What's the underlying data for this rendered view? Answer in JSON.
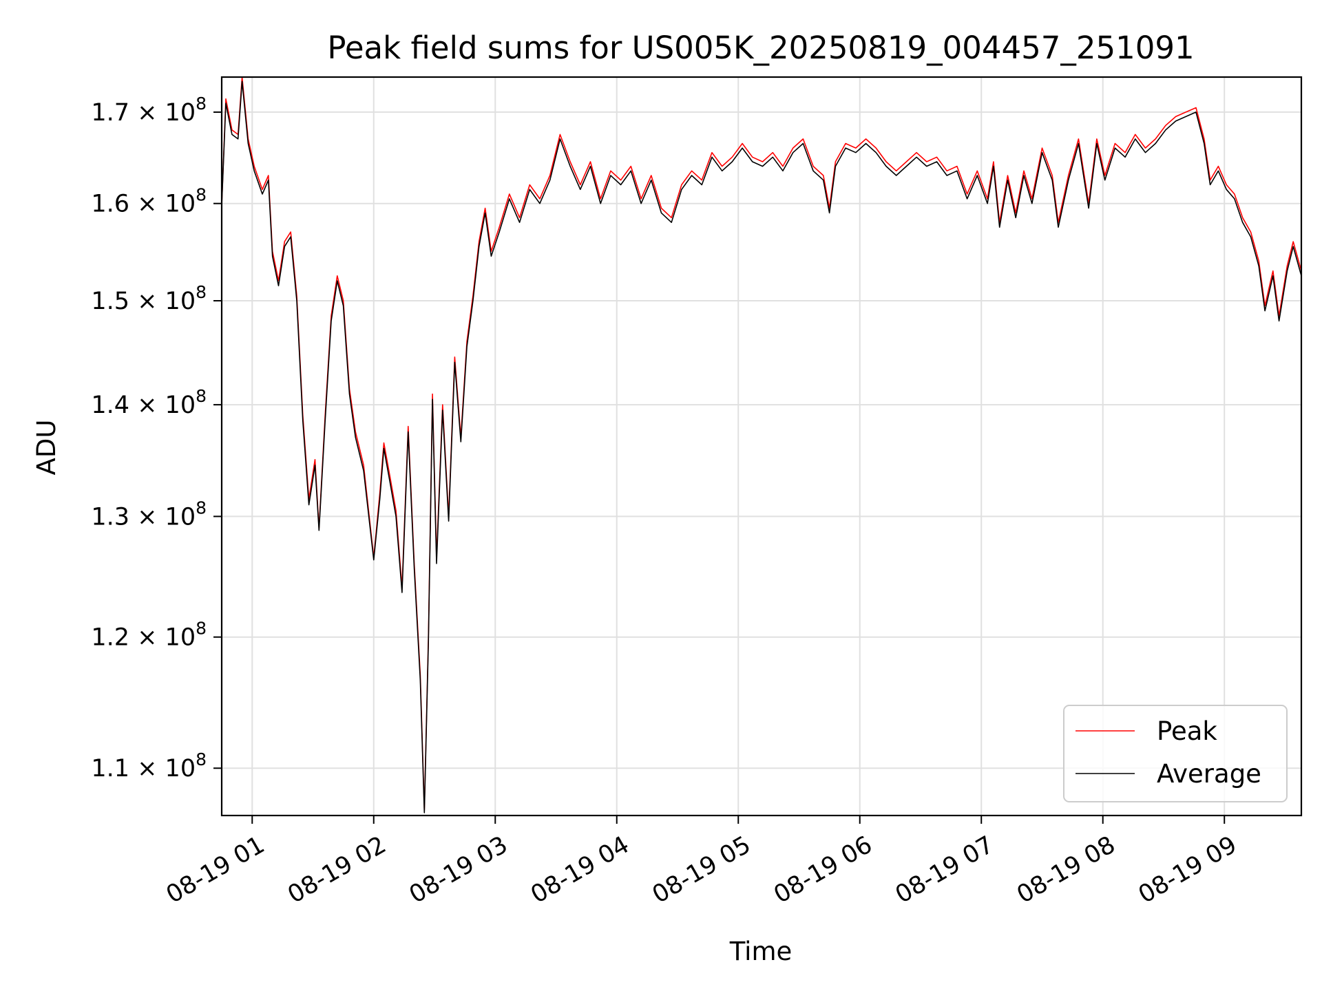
{
  "chart_data": {
    "type": "line",
    "title": "Peak field sums for US005K_20250819_004457_251091",
    "xlabel": "Time",
    "ylabel": "ADU",
    "x_ticks": [
      "08-19 01",
      "08-19 02",
      "08-19 03",
      "08-19 04",
      "08-19 05",
      "08-19 06",
      "08-19 07",
      "08-19 08",
      "08-19 09"
    ],
    "xlim": [
      "2025-08-19 00:44:57",
      "2025-08-19 09:38:00"
    ],
    "y_scale": "log",
    "y_ticks": [
      {
        "base": "1.1",
        "value": 110000000
      },
      {
        "base": "1.2",
        "value": 120000000
      },
      {
        "base": "1.3",
        "value": 130000000
      },
      {
        "base": "1.4",
        "value": 140000000
      },
      {
        "base": "1.5",
        "value": 150000000
      },
      {
        "base": "1.6",
        "value": 160000000
      },
      {
        "base": "1.7",
        "value": 170000000
      }
    ],
    "y_tick_suffix": "× 10",
    "y_tick_exp": "8",
    "ylim": [
      106600000,
      174000000
    ],
    "grid": true,
    "legend_position": "lower-right",
    "series": [
      {
        "name": "Peak",
        "color": "#ff0000",
        "points": [
          [
            "00:45",
            160000000
          ],
          [
            "00:47",
            171500000
          ],
          [
            "00:50",
            168000000
          ],
          [
            "00:53",
            167500000
          ],
          [
            "00:55",
            174000000
          ],
          [
            "00:58",
            167000000
          ],
          [
            "01:01",
            164000000
          ],
          [
            "01:05",
            161500000
          ],
          [
            "01:08",
            163000000
          ],
          [
            "01:10",
            155000000
          ],
          [
            "01:13",
            152000000
          ],
          [
            "01:16",
            156000000
          ],
          [
            "01:19",
            157000000
          ],
          [
            "01:22",
            150500000
          ],
          [
            "01:25",
            139000000
          ],
          [
            "01:28",
            131500000
          ],
          [
            "01:31",
            135000000
          ],
          [
            "01:33",
            129000000
          ],
          [
            "01:36",
            139000000
          ],
          [
            "01:39",
            148500000
          ],
          [
            "01:42",
            152500000
          ],
          [
            "01:45",
            150000000
          ],
          [
            "01:48",
            141500000
          ],
          [
            "01:51",
            137500000
          ],
          [
            "01:55",
            134500000
          ],
          [
            "02:00",
            126500000
          ],
          [
            "02:03",
            132000000
          ],
          [
            "02:05",
            136500000
          ],
          [
            "02:08",
            133500000
          ],
          [
            "02:11",
            130500000
          ],
          [
            "02:14",
            124000000
          ],
          [
            "02:17",
            138000000
          ],
          [
            "02:20",
            126000000
          ],
          [
            "02:23",
            117000000
          ],
          [
            "02:25",
            107000000
          ],
          [
            "02:27",
            120000000
          ],
          [
            "02:29",
            141000000
          ],
          [
            "02:31",
            126500000
          ],
          [
            "02:34",
            140000000
          ],
          [
            "02:37",
            130000000
          ],
          [
            "02:40",
            144500000
          ],
          [
            "02:43",
            137000000
          ],
          [
            "02:46",
            146000000
          ],
          [
            "02:49",
            150500000
          ],
          [
            "02:52",
            156000000
          ],
          [
            "02:55",
            159500000
          ],
          [
            "02:58",
            155000000
          ],
          [
            "03:02",
            157500000
          ],
          [
            "03:07",
            161000000
          ],
          [
            "03:12",
            158500000
          ],
          [
            "03:17",
            162000000
          ],
          [
            "03:22",
            160500000
          ],
          [
            "03:27",
            163000000
          ],
          [
            "03:32",
            167500000
          ],
          [
            "03:37",
            164500000
          ],
          [
            "03:42",
            162000000
          ],
          [
            "03:47",
            164500000
          ],
          [
            "03:52",
            160500000
          ],
          [
            "03:57",
            163500000
          ],
          [
            "04:02",
            162500000
          ],
          [
            "04:07",
            164000000
          ],
          [
            "04:12",
            160500000
          ],
          [
            "04:17",
            163000000
          ],
          [
            "04:22",
            159500000
          ],
          [
            "04:27",
            158500000
          ],
          [
            "04:32",
            162000000
          ],
          [
            "04:37",
            163500000
          ],
          [
            "04:42",
            162500000
          ],
          [
            "04:47",
            165500000
          ],
          [
            "04:52",
            164000000
          ],
          [
            "04:57",
            165000000
          ],
          [
            "05:02",
            166500000
          ],
          [
            "05:07",
            165000000
          ],
          [
            "05:12",
            164500000
          ],
          [
            "05:17",
            165500000
          ],
          [
            "05:22",
            164000000
          ],
          [
            "05:27",
            166000000
          ],
          [
            "05:32",
            167000000
          ],
          [
            "05:37",
            164000000
          ],
          [
            "05:42",
            163000000
          ],
          [
            "05:45",
            159500000
          ],
          [
            "05:48",
            164500000
          ],
          [
            "05:53",
            166500000
          ],
          [
            "05:58",
            166000000
          ],
          [
            "06:03",
            167000000
          ],
          [
            "06:08",
            166000000
          ],
          [
            "06:13",
            164500000
          ],
          [
            "06:18",
            163500000
          ],
          [
            "06:23",
            164500000
          ],
          [
            "06:28",
            165500000
          ],
          [
            "06:33",
            164500000
          ],
          [
            "06:38",
            165000000
          ],
          [
            "06:43",
            163500000
          ],
          [
            "06:48",
            164000000
          ],
          [
            "06:53",
            161000000
          ],
          [
            "06:58",
            163500000
          ],
          [
            "07:03",
            160500000
          ],
          [
            "07:06",
            164500000
          ],
          [
            "07:09",
            158000000
          ],
          [
            "07:13",
            163000000
          ],
          [
            "07:17",
            159000000
          ],
          [
            "07:21",
            163500000
          ],
          [
            "07:25",
            160500000
          ],
          [
            "07:30",
            166000000
          ],
          [
            "07:35",
            163000000
          ],
          [
            "07:38",
            158000000
          ],
          [
            "07:43",
            163000000
          ],
          [
            "07:48",
            167000000
          ],
          [
            "07:53",
            160000000
          ],
          [
            "07:57",
            167000000
          ],
          [
            "08:01",
            163000000
          ],
          [
            "08:06",
            166500000
          ],
          [
            "08:11",
            165500000
          ],
          [
            "08:16",
            167500000
          ],
          [
            "08:21",
            166000000
          ],
          [
            "08:26",
            167000000
          ],
          [
            "08:31",
            168500000
          ],
          [
            "08:36",
            169500000
          ],
          [
            "08:41",
            170000000
          ],
          [
            "08:46",
            170500000
          ],
          [
            "08:50",
            167000000
          ],
          [
            "08:53",
            162500000
          ],
          [
            "08:57",
            164000000
          ],
          [
            "09:01",
            162000000
          ],
          [
            "09:05",
            161000000
          ],
          [
            "09:09",
            158500000
          ],
          [
            "09:13",
            157000000
          ],
          [
            "09:17",
            154000000
          ],
          [
            "09:20",
            149500000
          ],
          [
            "09:24",
            153000000
          ],
          [
            "09:27",
            148500000
          ],
          [
            "09:31",
            153500000
          ],
          [
            "09:34",
            156000000
          ],
          [
            "09:38",
            153000000
          ]
        ]
      },
      {
        "name": "Average",
        "color": "#000000",
        "points": [
          [
            "00:45",
            160000000
          ],
          [
            "00:47",
            171000000
          ],
          [
            "00:50",
            167500000
          ],
          [
            "00:53",
            167000000
          ],
          [
            "00:55",
            173500000
          ],
          [
            "00:58",
            166500000
          ],
          [
            "01:01",
            163500000
          ],
          [
            "01:05",
            161000000
          ],
          [
            "01:08",
            162500000
          ],
          [
            "01:10",
            154500000
          ],
          [
            "01:13",
            151500000
          ],
          [
            "01:16",
            155500000
          ],
          [
            "01:19",
            156500000
          ],
          [
            "01:22",
            150000000
          ],
          [
            "01:25",
            138500000
          ],
          [
            "01:28",
            131000000
          ],
          [
            "01:31",
            134500000
          ],
          [
            "01:33",
            128800000
          ],
          [
            "01:36",
            138500000
          ],
          [
            "01:39",
            148000000
          ],
          [
            "01:42",
            152000000
          ],
          [
            "01:45",
            149500000
          ],
          [
            "01:48",
            141000000
          ],
          [
            "01:51",
            137000000
          ],
          [
            "01:55",
            134000000
          ],
          [
            "02:00",
            126300000
          ],
          [
            "02:03",
            131500000
          ],
          [
            "02:05",
            136000000
          ],
          [
            "02:08",
            133000000
          ],
          [
            "02:11",
            130000000
          ],
          [
            "02:14",
            123600000
          ],
          [
            "02:17",
            137500000
          ],
          [
            "02:20",
            125600000
          ],
          [
            "02:23",
            116600000
          ],
          [
            "02:25",
            106800000
          ],
          [
            "02:27",
            119600000
          ],
          [
            "02:29",
            140500000
          ],
          [
            "02:31",
            126000000
          ],
          [
            "02:34",
            139500000
          ],
          [
            "02:37",
            129600000
          ],
          [
            "02:40",
            144000000
          ],
          [
            "02:43",
            136600000
          ],
          [
            "02:46",
            145500000
          ],
          [
            "02:49",
            150000000
          ],
          [
            "02:52",
            155500000
          ],
          [
            "02:55",
            159000000
          ],
          [
            "02:58",
            154500000
          ],
          [
            "03:02",
            157000000
          ],
          [
            "03:07",
            160500000
          ],
          [
            "03:12",
            158000000
          ],
          [
            "03:17",
            161500000
          ],
          [
            "03:22",
            160000000
          ],
          [
            "03:27",
            162500000
          ],
          [
            "03:32",
            167000000
          ],
          [
            "03:37",
            164000000
          ],
          [
            "03:42",
            161500000
          ],
          [
            "03:47",
            164000000
          ],
          [
            "03:52",
            160000000
          ],
          [
            "03:57",
            163000000
          ],
          [
            "04:02",
            162000000
          ],
          [
            "04:07",
            163500000
          ],
          [
            "04:12",
            160000000
          ],
          [
            "04:17",
            162500000
          ],
          [
            "04:22",
            159000000
          ],
          [
            "04:27",
            158000000
          ],
          [
            "04:32",
            161500000
          ],
          [
            "04:37",
            163000000
          ],
          [
            "04:42",
            162000000
          ],
          [
            "04:47",
            165000000
          ],
          [
            "04:52",
            163500000
          ],
          [
            "04:57",
            164500000
          ],
          [
            "05:02",
            166000000
          ],
          [
            "05:07",
            164500000
          ],
          [
            "05:12",
            164000000
          ],
          [
            "05:17",
            165000000
          ],
          [
            "05:22",
            163500000
          ],
          [
            "05:27",
            165500000
          ],
          [
            "05:32",
            166500000
          ],
          [
            "05:37",
            163500000
          ],
          [
            "05:42",
            162500000
          ],
          [
            "05:45",
            159000000
          ],
          [
            "05:48",
            164000000
          ],
          [
            "05:53",
            166000000
          ],
          [
            "05:58",
            165500000
          ],
          [
            "06:03",
            166500000
          ],
          [
            "06:08",
            165500000
          ],
          [
            "06:13",
            164000000
          ],
          [
            "06:18",
            163000000
          ],
          [
            "06:23",
            164000000
          ],
          [
            "06:28",
            165000000
          ],
          [
            "06:33",
            164000000
          ],
          [
            "06:38",
            164500000
          ],
          [
            "06:43",
            163000000
          ],
          [
            "06:48",
            163500000
          ],
          [
            "06:53",
            160500000
          ],
          [
            "06:58",
            163000000
          ],
          [
            "07:03",
            160000000
          ],
          [
            "07:06",
            164000000
          ],
          [
            "07:09",
            157500000
          ],
          [
            "07:13",
            162500000
          ],
          [
            "07:17",
            158500000
          ],
          [
            "07:21",
            163000000
          ],
          [
            "07:25",
            160000000
          ],
          [
            "07:30",
            165500000
          ],
          [
            "07:35",
            162500000
          ],
          [
            "07:38",
            157500000
          ],
          [
            "07:43",
            162500000
          ],
          [
            "07:48",
            166500000
          ],
          [
            "07:53",
            159500000
          ],
          [
            "07:57",
            166500000
          ],
          [
            "08:01",
            162500000
          ],
          [
            "08:06",
            166000000
          ],
          [
            "08:11",
            165000000
          ],
          [
            "08:16",
            167000000
          ],
          [
            "08:21",
            165500000
          ],
          [
            "08:26",
            166500000
          ],
          [
            "08:31",
            168000000
          ],
          [
            "08:36",
            169000000
          ],
          [
            "08:41",
            169500000
          ],
          [
            "08:46",
            170000000
          ],
          [
            "08:50",
            166500000
          ],
          [
            "08:53",
            162000000
          ],
          [
            "08:57",
            163500000
          ],
          [
            "09:01",
            161500000
          ],
          [
            "09:05",
            160500000
          ],
          [
            "09:09",
            158000000
          ],
          [
            "09:13",
            156500000
          ],
          [
            "09:17",
            153500000
          ],
          [
            "09:20",
            149000000
          ],
          [
            "09:24",
            152500000
          ],
          [
            "09:27",
            148000000
          ],
          [
            "09:31",
            153000000
          ],
          [
            "09:34",
            155500000
          ],
          [
            "09:38",
            152500000
          ]
        ]
      }
    ]
  }
}
